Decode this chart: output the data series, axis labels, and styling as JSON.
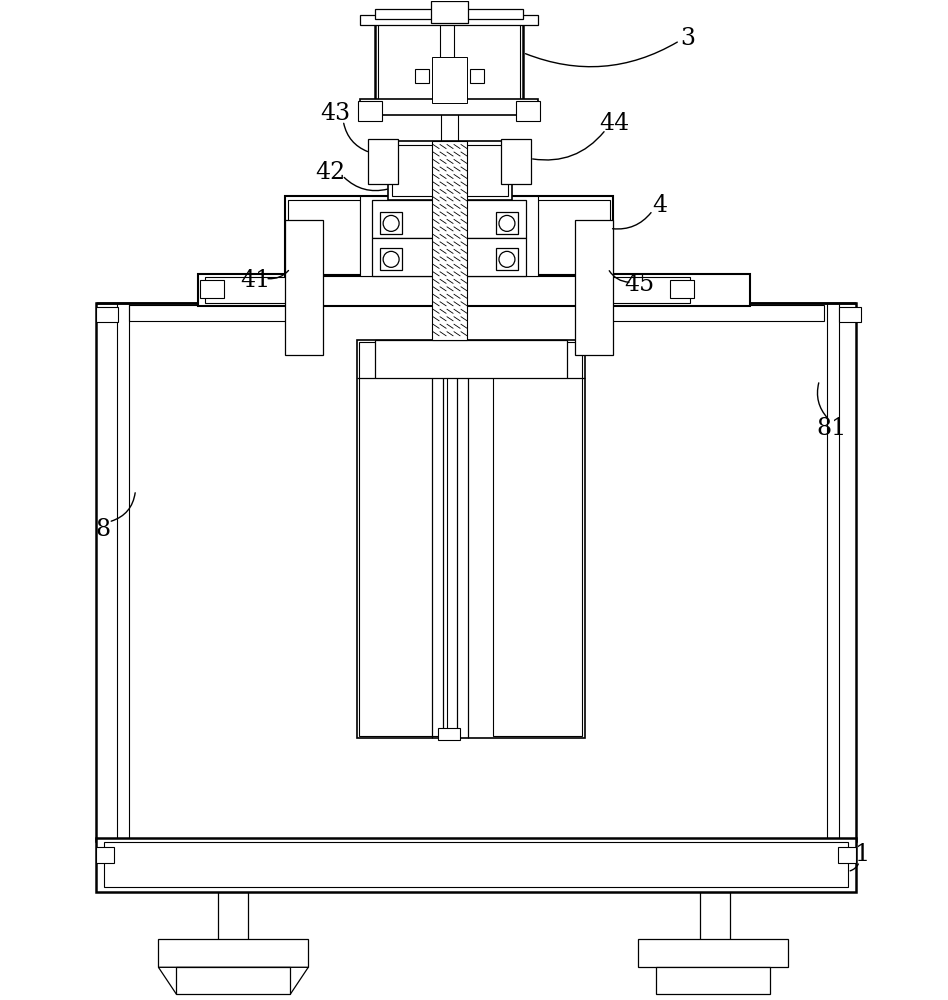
{
  "bg_color": "#ffffff",
  "line_color": "#000000",
  "label_fontsize": 17,
  "figsize": [
    9.48,
    10.0
  ],
  "dpi": 100
}
